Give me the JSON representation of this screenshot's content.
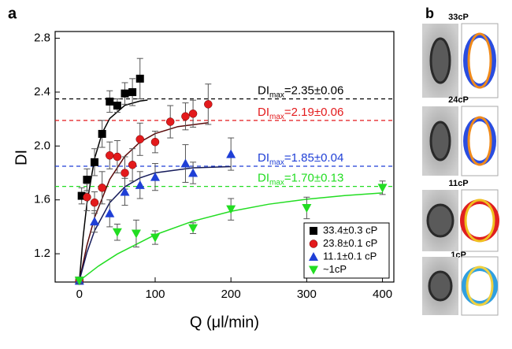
{
  "chart_data": {
    "type": "scatter",
    "panel_label": "a",
    "xlabel": "Q (μl/min)",
    "ylabel": "DI",
    "xlim": [
      -32,
      415
    ],
    "ylim": [
      0.99,
      2.85
    ],
    "xticks": [
      0,
      100,
      200,
      300,
      400
    ],
    "yticks": [
      1.2,
      1.6,
      {
        "value": 2,
        "label": "2.0"
      },
      2.4,
      2.8
    ],
    "series": [
      {
        "name": "33.4±0.3 cP",
        "color": "#000000",
        "marker": "square",
        "x": [
          0,
          3,
          10,
          20,
          30,
          40,
          50,
          60,
          70,
          80
        ],
        "values": [
          1.0,
          1.63,
          1.75,
          1.88,
          2.09,
          2.33,
          2.3,
          2.39,
          2.4,
          2.5
        ],
        "errors": [
          0.02,
          0.06,
          0.08,
          0.1,
          0.1,
          0.08,
          0.05,
          0.08,
          0.1,
          0.15
        ]
      },
      {
        "name": "23.8±0.1 cP",
        "color": "#e31a1c",
        "marker": "circle",
        "x": [
          0,
          10,
          20,
          30,
          40,
          50,
          60,
          70,
          80,
          100,
          120,
          140,
          150,
          170
        ],
        "values": [
          1.0,
          1.62,
          1.58,
          1.69,
          1.93,
          1.92,
          1.8,
          1.86,
          2.05,
          2.03,
          2.18,
          2.22,
          2.24,
          2.31
        ],
        "errors": [
          0.02,
          0.1,
          0.08,
          0.12,
          0.1,
          0.12,
          0.12,
          0.12,
          0.12,
          0.08,
          0.12,
          0.1,
          0.1,
          0.15
        ]
      },
      {
        "name": "11.1±0.1 cP",
        "color": "#1f3fd6",
        "marker": "triangle",
        "x": [
          0,
          20,
          40,
          60,
          80,
          100,
          140,
          150,
          200
        ],
        "values": [
          1.0,
          1.44,
          1.5,
          1.66,
          1.71,
          1.77,
          1.87,
          1.8,
          1.94
        ],
        "errors": [
          0.02,
          0.08,
          0.1,
          0.1,
          0.1,
          0.1,
          0.14,
          0.08,
          0.12
        ]
      },
      {
        "name": "~1cP",
        "color": "#22dd22",
        "marker": "triangle-down",
        "x": [
          0,
          50,
          75,
          100,
          150,
          200,
          300,
          400
        ],
        "values": [
          1.0,
          1.36,
          1.35,
          1.32,
          1.39,
          1.53,
          1.54,
          1.69
        ],
        "errors": [
          0.02,
          0.06,
          0.1,
          0.05,
          0.04,
          0.08,
          0.08,
          0.05
        ]
      }
    ],
    "fits": [
      {
        "color": "#000000",
        "x": [
          0,
          5,
          10,
          20,
          30,
          40,
          60,
          80,
          90
        ],
        "values": [
          1.0,
          1.328,
          1.575,
          1.906,
          2.095,
          2.204,
          2.302,
          2.334,
          2.341
        ]
      },
      {
        "color": "#5a0a0a",
        "x": [
          0,
          10,
          20,
          40,
          60,
          80,
          100,
          130,
          170
        ],
        "values": [
          1.0,
          1.263,
          1.468,
          1.752,
          1.924,
          2.029,
          2.092,
          2.144,
          2.173
        ]
      },
      {
        "color": "#141a5a",
        "x": [
          0,
          10,
          20,
          40,
          60,
          80,
          100,
          150,
          200
        ],
        "values": [
          1.0,
          1.211,
          1.37,
          1.579,
          1.697,
          1.763,
          1.801,
          1.838,
          1.847
        ]
      },
      {
        "color": "#22dd22",
        "x": [
          0,
          25,
          50,
          100,
          150,
          200,
          250,
          300,
          350,
          400
        ],
        "values": [
          1.0,
          1.108,
          1.198,
          1.341,
          1.442,
          1.515,
          1.568,
          1.605,
          1.632,
          1.652
        ]
      }
    ],
    "reference_lines": [
      {
        "value": 2.35,
        "color": "#000000",
        "prefix": "DI",
        "sub": "max",
        "text": "=2.35±0.06"
      },
      {
        "value": 2.19,
        "color": "#e31a1c",
        "prefix": "DI",
        "sub": "max",
        "text": "=2.19±0.06"
      },
      {
        "value": 1.85,
        "color": "#1f3fd6",
        "prefix": "DI",
        "sub": "max",
        "text": "=1.85±0.04"
      },
      {
        "value": 1.7,
        "color": "#22dd22",
        "prefix": "DI",
        "sub": "max",
        "text": "=1.70±0.13"
      }
    ]
  },
  "panel_b": {
    "label": "b",
    "images": [
      "33cP",
      "24cP",
      "11cP",
      "1cP"
    ]
  }
}
